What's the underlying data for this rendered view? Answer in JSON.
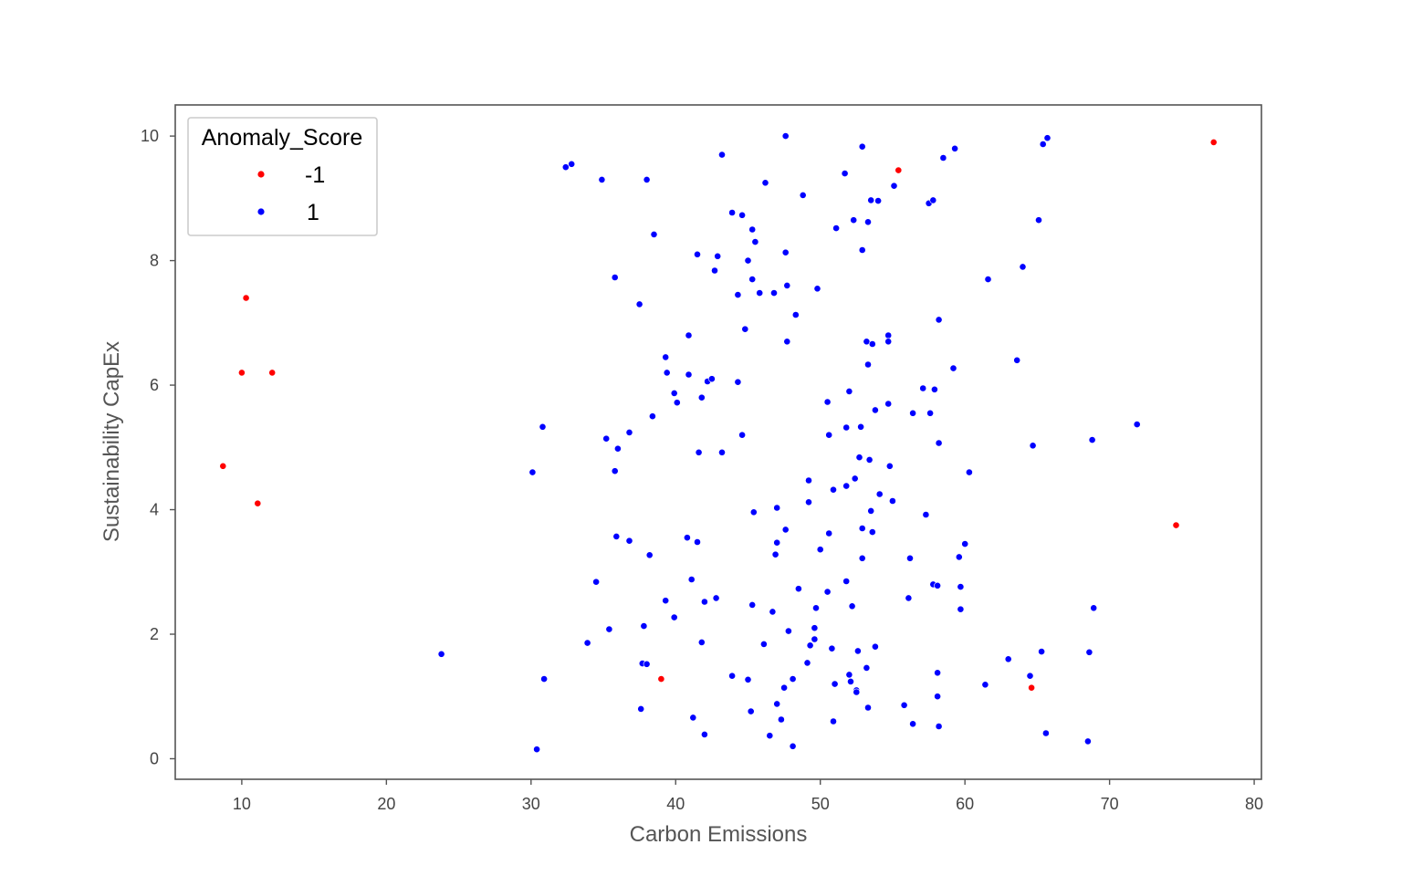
{
  "chart_data": {
    "type": "scatter",
    "title": "",
    "xlabel": "Carbon Emissions",
    "ylabel": "Sustainability CapEx",
    "xlim": [
      5.4,
      80.5
    ],
    "ylim": [
      -0.33,
      10.5
    ],
    "xticks": [
      10,
      20,
      30,
      40,
      50,
      60,
      70,
      80
    ],
    "yticks": [
      0,
      2,
      4,
      6,
      8,
      10
    ],
    "grid": false,
    "legend": {
      "title": "Anomaly_Score",
      "placement": "top-left"
    },
    "colors": {
      "anomaly": "#ff0000",
      "normal": "#0000ff",
      "axes": "#555555"
    },
    "series": [
      {
        "name": "-1",
        "color": "#ff0000",
        "points": [
          [
            10.3,
            7.4
          ],
          [
            10.0,
            6.2
          ],
          [
            12.1,
            6.2
          ],
          [
            8.7,
            4.7
          ],
          [
            11.1,
            4.1
          ],
          [
            55.4,
            9.45
          ],
          [
            77.2,
            9.9
          ],
          [
            74.6,
            3.75
          ],
          [
            39.0,
            1.28
          ],
          [
            64.6,
            1.14
          ]
        ]
      },
      {
        "name": "1",
        "color": "#0000ff",
        "points": [
          [
            32.4,
            9.5
          ],
          [
            32.8,
            9.55
          ],
          [
            34.9,
            9.3
          ],
          [
            38.0,
            9.3
          ],
          [
            43.2,
            9.7
          ],
          [
            47.6,
            10.0
          ],
          [
            46.2,
            9.25
          ],
          [
            48.8,
            9.05
          ],
          [
            51.7,
            9.4
          ],
          [
            52.9,
            9.83
          ],
          [
            55.1,
            9.2
          ],
          [
            53.5,
            8.97
          ],
          [
            54.0,
            8.96
          ],
          [
            57.5,
            8.92
          ],
          [
            57.8,
            8.97
          ],
          [
            58.5,
            9.65
          ],
          [
            59.3,
            9.8
          ],
          [
            65.4,
            9.87
          ],
          [
            65.7,
            9.97
          ],
          [
            65.1,
            8.65
          ],
          [
            38.5,
            8.42
          ],
          [
            43.9,
            8.77
          ],
          [
            44.6,
            8.73
          ],
          [
            45.3,
            8.5
          ],
          [
            45.5,
            8.3
          ],
          [
            47.6,
            8.13
          ],
          [
            51.1,
            8.52
          ],
          [
            52.3,
            8.65
          ],
          [
            53.3,
            8.62
          ],
          [
            52.9,
            8.17
          ],
          [
            41.5,
            8.1
          ],
          [
            42.9,
            8.07
          ],
          [
            42.7,
            7.84
          ],
          [
            45.0,
            8.0
          ],
          [
            45.3,
            7.7
          ],
          [
            44.3,
            7.45
          ],
          [
            45.8,
            7.48
          ],
          [
            46.8,
            7.48
          ],
          [
            47.7,
            7.6
          ],
          [
            49.8,
            7.55
          ],
          [
            48.3,
            7.13
          ],
          [
            47.7,
            6.7
          ],
          [
            44.8,
            6.9
          ],
          [
            35.8,
            7.73
          ],
          [
            37.5,
            7.3
          ],
          [
            61.6,
            7.7
          ],
          [
            64.0,
            7.9
          ],
          [
            58.2,
            7.05
          ],
          [
            54.7,
            6.8
          ],
          [
            54.7,
            6.7
          ],
          [
            53.2,
            6.7
          ],
          [
            53.6,
            6.66
          ],
          [
            53.3,
            6.33
          ],
          [
            59.2,
            6.27
          ],
          [
            63.6,
            6.4
          ],
          [
            40.9,
            6.8
          ],
          [
            39.3,
            6.45
          ],
          [
            39.4,
            6.2
          ],
          [
            40.9,
            6.17
          ],
          [
            42.2,
            6.06
          ],
          [
            42.5,
            6.1
          ],
          [
            44.3,
            6.05
          ],
          [
            39.9,
            5.87
          ],
          [
            40.1,
            5.72
          ],
          [
            41.8,
            5.8
          ],
          [
            38.4,
            5.5
          ],
          [
            50.5,
            5.73
          ],
          [
            52.0,
            5.9
          ],
          [
            53.8,
            5.6
          ],
          [
            54.7,
            5.7
          ],
          [
            56.4,
            5.55
          ],
          [
            57.1,
            5.95
          ],
          [
            57.6,
            5.55
          ],
          [
            57.9,
            5.93
          ],
          [
            58.2,
            5.07
          ],
          [
            71.9,
            5.37
          ],
          [
            68.8,
            5.12
          ],
          [
            64.7,
            5.03
          ],
          [
            60.3,
            4.6
          ],
          [
            30.8,
            5.33
          ],
          [
            35.2,
            5.14
          ],
          [
            36.0,
            4.98
          ],
          [
            36.8,
            5.24
          ],
          [
            41.6,
            4.92
          ],
          [
            43.2,
            4.92
          ],
          [
            44.6,
            5.2
          ],
          [
            50.6,
            5.2
          ],
          [
            51.8,
            5.32
          ],
          [
            52.8,
            5.33
          ],
          [
            30.1,
            4.6
          ],
          [
            35.8,
            4.62
          ],
          [
            52.7,
            4.84
          ],
          [
            53.4,
            4.8
          ],
          [
            54.8,
            4.7
          ],
          [
            49.2,
            4.47
          ],
          [
            50.9,
            4.32
          ],
          [
            51.8,
            4.38
          ],
          [
            52.4,
            4.5
          ],
          [
            54.1,
            4.25
          ],
          [
            55.0,
            4.14
          ],
          [
            49.2,
            4.12
          ],
          [
            47.0,
            4.03
          ],
          [
            45.4,
            3.96
          ],
          [
            53.5,
            3.98
          ],
          [
            57.3,
            3.92
          ],
          [
            47.6,
            3.68
          ],
          [
            52.9,
            3.7
          ],
          [
            53.6,
            3.64
          ],
          [
            35.9,
            3.57
          ],
          [
            36.8,
            3.5
          ],
          [
            40.8,
            3.55
          ],
          [
            41.5,
            3.48
          ],
          [
            47.0,
            3.47
          ],
          [
            46.9,
            3.28
          ],
          [
            50.0,
            3.36
          ],
          [
            50.6,
            3.62
          ],
          [
            52.9,
            3.22
          ],
          [
            56.2,
            3.22
          ],
          [
            59.6,
            3.24
          ],
          [
            60.0,
            3.45
          ],
          [
            38.2,
            3.27
          ],
          [
            34.5,
            2.84
          ],
          [
            41.1,
            2.88
          ],
          [
            42.8,
            2.58
          ],
          [
            39.3,
            2.54
          ],
          [
            42.0,
            2.52
          ],
          [
            48.5,
            2.73
          ],
          [
            50.5,
            2.68
          ],
          [
            51.8,
            2.85
          ],
          [
            57.8,
            2.8
          ],
          [
            58.1,
            2.78
          ],
          [
            59.7,
            2.76
          ],
          [
            56.1,
            2.58
          ],
          [
            59.7,
            2.4
          ],
          [
            68.9,
            2.42
          ],
          [
            39.9,
            2.27
          ],
          [
            45.3,
            2.47
          ],
          [
            46.7,
            2.36
          ],
          [
            49.7,
            2.42
          ],
          [
            52.2,
            2.45
          ],
          [
            35.4,
            2.08
          ],
          [
            37.8,
            2.13
          ],
          [
            47.8,
            2.05
          ],
          [
            49.6,
            2.1
          ],
          [
            49.6,
            1.92
          ],
          [
            49.3,
            1.82
          ],
          [
            50.8,
            1.77
          ],
          [
            46.1,
            1.84
          ],
          [
            41.8,
            1.87
          ],
          [
            33.9,
            1.86
          ],
          [
            23.8,
            1.68
          ],
          [
            37.7,
            1.53
          ],
          [
            38.0,
            1.52
          ],
          [
            49.1,
            1.54
          ],
          [
            52.6,
            1.73
          ],
          [
            53.8,
            1.8
          ],
          [
            53.2,
            1.46
          ],
          [
            63.0,
            1.6
          ],
          [
            65.3,
            1.72
          ],
          [
            68.6,
            1.71
          ],
          [
            30.9,
            1.28
          ],
          [
            43.9,
            1.33
          ],
          [
            45.0,
            1.27
          ],
          [
            48.1,
            1.28
          ],
          [
            52.0,
            1.35
          ],
          [
            52.1,
            1.24
          ],
          [
            51.0,
            1.2
          ],
          [
            52.5,
            1.1
          ],
          [
            52.5,
            1.07
          ],
          [
            47.5,
            1.14
          ],
          [
            58.1,
            1.38
          ],
          [
            58.1,
            1.0
          ],
          [
            61.4,
            1.19
          ],
          [
            64.5,
            1.33
          ],
          [
            37.6,
            0.8
          ],
          [
            41.2,
            0.66
          ],
          [
            45.2,
            0.76
          ],
          [
            47.0,
            0.88
          ],
          [
            47.3,
            0.63
          ],
          [
            50.9,
            0.6
          ],
          [
            53.3,
            0.82
          ],
          [
            55.8,
            0.86
          ],
          [
            56.4,
            0.56
          ],
          [
            58.2,
            0.52
          ],
          [
            42.0,
            0.39
          ],
          [
            46.5,
            0.37
          ],
          [
            48.1,
            0.2
          ],
          [
            30.4,
            0.15
          ],
          [
            65.6,
            0.41
          ],
          [
            68.5,
            0.28
          ]
        ]
      }
    ]
  }
}
